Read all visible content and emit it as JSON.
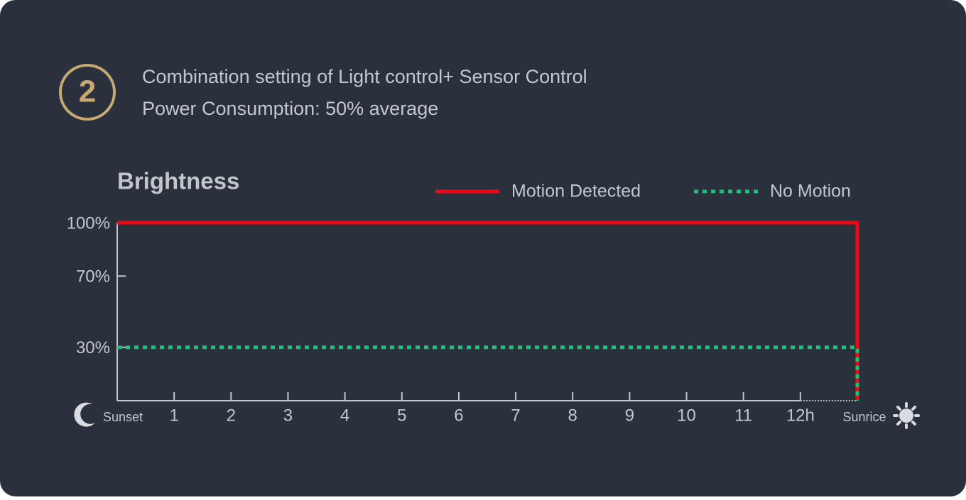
{
  "header": {
    "badge": "2",
    "lines": [
      "Combination setting of Light control+ Sensor Control",
      "Power Consumption: 50% average"
    ]
  },
  "chart_data": {
    "type": "line",
    "title": "Brightness",
    "xlim": [
      0,
      13
    ],
    "xticks": [
      {
        "value": 0,
        "label": "Sunset"
      },
      1,
      2,
      3,
      4,
      5,
      6,
      7,
      8,
      9,
      10,
      11,
      {
        "value": 12,
        "label": "12h"
      },
      {
        "value": 13,
        "label": "Sunrice"
      }
    ],
    "ylim": [
      0,
      100
    ],
    "yticks": [
      {
        "value": 100,
        "label": "100%"
      },
      {
        "value": 70,
        "label": "70%"
      },
      {
        "value": 30,
        "label": "30%"
      }
    ],
    "grid": false,
    "series": [
      {
        "name": "Motion Detected",
        "color": "#ee0a14",
        "line_style": "solid",
        "x": [
          0,
          13,
          13
        ],
        "values": [
          100,
          100,
          0
        ]
      },
      {
        "name": "No Motion",
        "color": "#19c47a",
        "line_style": "dotted",
        "x": [
          0,
          13,
          13
        ],
        "values": [
          30,
          30,
          0
        ]
      }
    ]
  }
}
